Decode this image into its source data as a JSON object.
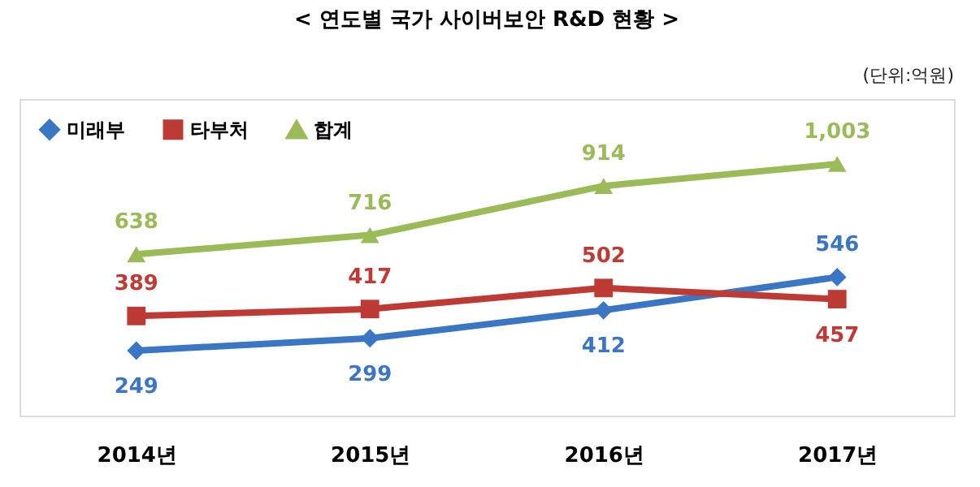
{
  "chart_data": {
    "type": "line",
    "title": "< 연도별 국가 사이버보안 R&D 현황 >",
    "annotations": [
      "(단위:억원)"
    ],
    "categories": [
      "2014년",
      "2015년",
      "2016년",
      "2017년"
    ],
    "series": [
      {
        "name": "미래부",
        "color": "#3a76c4",
        "marker": "diamond",
        "values": [
          249,
          299,
          412,
          546
        ],
        "value_labels": [
          "249",
          "299",
          "412",
          "546"
        ]
      },
      {
        "name": "타부처",
        "color": "#be3a34",
        "marker": "square",
        "values": [
          389,
          417,
          502,
          457
        ],
        "value_labels": [
          "389",
          "417",
          "502",
          "457"
        ]
      },
      {
        "name": "합계",
        "color": "#9bbb59",
        "marker": "triangle",
        "values": [
          638,
          716,
          914,
          1003
        ],
        "value_labels": [
          "638",
          "716",
          "914",
          "1,003"
        ]
      }
    ],
    "grid": false,
    "legend": "top left",
    "line_style": "solid"
  }
}
